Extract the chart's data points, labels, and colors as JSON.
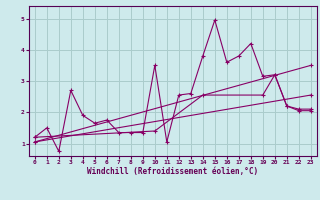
{
  "title": "",
  "xlabel": "Windchill (Refroidissement éolien,°C)",
  "background_color": "#ceeaec",
  "grid_color": "#aacccc",
  "line_color": "#880066",
  "spine_color": "#550055",
  "tick_color": "#660055",
  "xlim": [
    -0.5,
    23.5
  ],
  "ylim": [
    0.6,
    5.4
  ],
  "xticks": [
    0,
    1,
    2,
    3,
    4,
    5,
    6,
    7,
    8,
    9,
    10,
    11,
    12,
    13,
    14,
    15,
    16,
    17,
    18,
    19,
    20,
    21,
    22,
    23
  ],
  "yticks": [
    1,
    2,
    3,
    4,
    5
  ],
  "series1_x": [
    0,
    1,
    2,
    3,
    4,
    5,
    6,
    7,
    8,
    9,
    10,
    11,
    12,
    13,
    14,
    15,
    16,
    17,
    18,
    19,
    20,
    21,
    22,
    23
  ],
  "series1_y": [
    1.2,
    1.5,
    0.75,
    2.7,
    1.9,
    1.65,
    1.75,
    1.35,
    1.35,
    1.35,
    3.5,
    1.05,
    2.55,
    2.6,
    3.8,
    4.95,
    3.6,
    3.8,
    4.2,
    3.15,
    3.2,
    2.2,
    2.05,
    2.05
  ],
  "series2_x": [
    0,
    10,
    14,
    19,
    20,
    21,
    22,
    23
  ],
  "series2_y": [
    1.2,
    1.4,
    2.55,
    2.55,
    3.2,
    2.2,
    2.1,
    2.1
  ],
  "series3_x": [
    0,
    23
  ],
  "series3_y": [
    1.05,
    2.55
  ],
  "series4_x": [
    0,
    23
  ],
  "series4_y": [
    1.05,
    3.5
  ],
  "marker": "+"
}
